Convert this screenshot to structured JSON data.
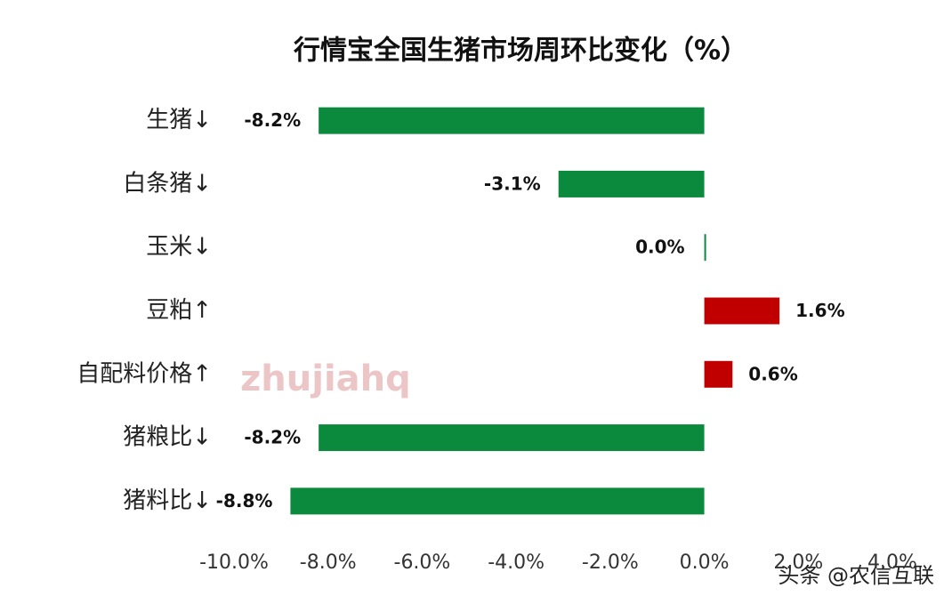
{
  "chart_data": {
    "type": "hbar",
    "title": "行情宝全国生猪市场周环比变化（%）",
    "categories": [
      "生猪↓",
      "白条猪↓",
      "玉米↓",
      "豆粕↑",
      "自配料价格↑",
      "猪粮比↓",
      "猪料比↓"
    ],
    "values": [
      -8.2,
      -3.1,
      0.0,
      1.6,
      0.6,
      -8.2,
      -8.8
    ],
    "value_labels": [
      "-8.2%",
      "-3.1%",
      "0.0%",
      "1.6%",
      "0.6%",
      "-8.2%",
      "-8.8%"
    ],
    "colors": [
      "#0b8a3e",
      "#0b8a3e",
      "#0b8a3e",
      "#c00000",
      "#c00000",
      "#0b8a3e",
      "#0b8a3e"
    ],
    "xlim": [
      -10,
      4
    ],
    "xticks": [
      {
        "value": -10,
        "label": "-10.0%"
      },
      {
        "value": -8,
        "label": "-8.0%"
      },
      {
        "value": -6,
        "label": "-6.0%"
      },
      {
        "value": -4,
        "label": "-4.0%"
      },
      {
        "value": -2,
        "label": "-2.0%"
      },
      {
        "value": 0,
        "label": "0.0%"
      },
      {
        "value": 2,
        "label": "2.0%"
      },
      {
        "value": 4,
        "label": "4.0%"
      }
    ],
    "grid": false,
    "watermark_logo": "zhujiahq",
    "watermark": "头条 @农信互联"
  }
}
